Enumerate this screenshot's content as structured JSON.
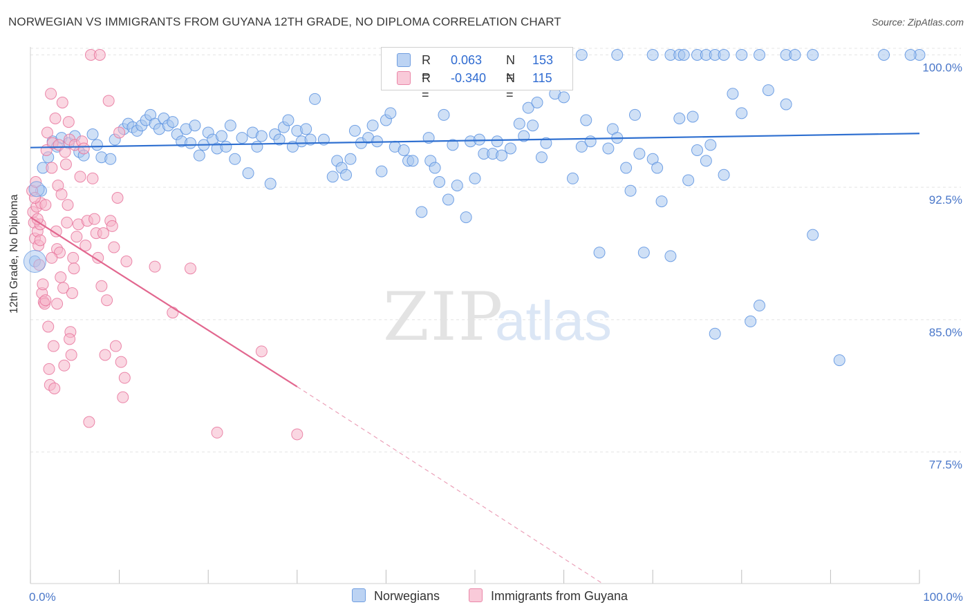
{
  "header": {
    "title": "NORWEGIAN VS IMMIGRANTS FROM GUYANA 12TH GRADE, NO DIPLOMA CORRELATION CHART",
    "source": "Source: ZipAtlas.com"
  },
  "legend": {
    "rows": [
      {
        "r_label": "R =",
        "r_value": "0.063",
        "n_label": "N =",
        "n_value": "153",
        "color": "#a8c6ef"
      },
      {
        "r_label": "R =",
        "r_value": "-0.340",
        "n_label": "N =",
        "n_value": "115",
        "color": "#f6b6ca"
      }
    ]
  },
  "bottom_legend": {
    "norwegians": "Norwegians",
    "guyana": "Immigrants from Guyana"
  },
  "watermark": {
    "zip": "ZIP",
    "atlas": "atlas"
  },
  "chart_data": {
    "type": "scatter",
    "ylabel": "12th Grade, No Diploma",
    "xlabel": "",
    "xlim": [
      0,
      100
    ],
    "ylim": [
      70,
      100.5
    ],
    "x_tick_labels": [
      "0.0%",
      "100.0%"
    ],
    "y_ticks": [
      {
        "value": 100.0,
        "label": "100.0%"
      },
      {
        "value": 92.5,
        "label": "92.5%"
      },
      {
        "value": 85.0,
        "label": "85.0%"
      },
      {
        "value": 77.5,
        "label": "77.5%"
      }
    ],
    "grid": true,
    "series": [
      {
        "name": "Norwegians",
        "color": "#5b92e0",
        "fill": "#a8c6ef",
        "trend": {
          "x": [
            0,
            100
          ],
          "y": [
            94.75,
            95.55
          ],
          "style": "solid"
        },
        "points": [
          [
            0.5,
            88.3
          ],
          [
            1.2,
            92.3
          ],
          [
            1.4,
            93.6
          ],
          [
            2,
            94.2
          ],
          [
            2.5,
            95.1
          ],
          [
            3,
            94.8
          ],
          [
            3.5,
            95.3
          ],
          [
            4.3,
            95.0
          ],
          [
            5,
            95.4
          ],
          [
            5.5,
            94.5
          ],
          [
            6,
            94.3
          ],
          [
            7,
            95.5
          ],
          [
            7.5,
            94.9
          ],
          [
            8,
            94.2
          ],
          [
            9,
            94.1
          ],
          [
            9.5,
            95.2
          ],
          [
            10.5,
            95.8
          ],
          [
            11,
            96.1
          ],
          [
            11.5,
            95.9
          ],
          [
            12,
            95.7
          ],
          [
            12.5,
            96.0
          ],
          [
            13,
            96.3
          ],
          [
            13.5,
            96.6
          ],
          [
            14,
            96.1
          ],
          [
            14.5,
            95.8
          ],
          [
            15,
            96.4
          ],
          [
            15.5,
            96.0
          ],
          [
            16,
            96.2
          ],
          [
            16.5,
            95.5
          ],
          [
            17,
            95.1
          ],
          [
            17.5,
            95.8
          ],
          [
            18,
            95.0
          ],
          [
            18.5,
            96.0
          ],
          [
            19,
            94.3
          ],
          [
            19.5,
            94.9
          ],
          [
            20,
            95.6
          ],
          [
            20.5,
            95.2
          ],
          [
            21,
            94.7
          ],
          [
            21.5,
            95.4
          ],
          [
            22,
            94.8
          ],
          [
            22.5,
            96.0
          ],
          [
            23,
            94.1
          ],
          [
            23.8,
            95.3
          ],
          [
            24.5,
            93.3
          ],
          [
            25,
            95.6
          ],
          [
            25.5,
            94.8
          ],
          [
            26,
            95.4
          ],
          [
            27,
            92.7
          ],
          [
            27.5,
            95.5
          ],
          [
            28,
            95.2
          ],
          [
            28.5,
            95.9
          ],
          [
            29,
            96.3
          ],
          [
            29.5,
            94.8
          ],
          [
            30,
            95.7
          ],
          [
            30.5,
            95.1
          ],
          [
            31,
            95.8
          ],
          [
            31.5,
            95.2
          ],
          [
            32,
            97.5
          ],
          [
            33,
            95.2
          ],
          [
            34,
            93.1
          ],
          [
            34.5,
            94.0
          ],
          [
            35,
            93.6
          ],
          [
            35.5,
            93.2
          ],
          [
            36,
            94.1
          ],
          [
            36.5,
            95.7
          ],
          [
            37.2,
            95.0
          ],
          [
            38,
            95.3
          ],
          [
            38.5,
            96.0
          ],
          [
            39,
            95.1
          ],
          [
            39.5,
            93.4
          ],
          [
            40,
            96.3
          ],
          [
            40.5,
            96.7
          ],
          [
            41,
            94.8
          ],
          [
            42,
            94.6
          ],
          [
            42.5,
            94.0
          ],
          [
            43,
            94.0
          ],
          [
            44,
            91.1
          ],
          [
            44.8,
            95.3
          ],
          [
            45,
            94.0
          ],
          [
            45.5,
            93.6
          ],
          [
            46,
            92.8
          ],
          [
            46.5,
            96.6
          ],
          [
            47,
            91.8
          ],
          [
            47.5,
            94.9
          ],
          [
            48,
            92.6
          ],
          [
            49,
            90.8
          ],
          [
            49.5,
            95.1
          ],
          [
            50,
            93.0
          ],
          [
            50.5,
            95.2
          ],
          [
            51,
            94.4
          ],
          [
            52,
            94.4
          ],
          [
            52.5,
            95.1
          ],
          [
            53,
            94.3
          ],
          [
            54,
            94.7
          ],
          [
            55,
            96.1
          ],
          [
            55.5,
            95.4
          ],
          [
            56,
            97.0
          ],
          [
            56.5,
            96.0
          ],
          [
            57,
            97.3
          ],
          [
            57.5,
            94.2
          ],
          [
            58,
            95.0
          ],
          [
            59,
            97.8
          ],
          [
            60,
            97.6
          ],
          [
            61,
            93.0
          ],
          [
            62,
            94.8
          ],
          [
            62.5,
            96.3
          ],
          [
            63,
            95.1
          ],
          [
            64,
            88.8
          ],
          [
            65,
            94.7
          ],
          [
            65.5,
            95.8
          ],
          [
            66,
            95.3
          ],
          [
            67,
            93.6
          ],
          [
            67.5,
            92.3
          ],
          [
            68,
            96.6
          ],
          [
            68.5,
            94.4
          ],
          [
            69,
            88.8
          ],
          [
            70,
            94.1
          ],
          [
            70.5,
            93.6
          ],
          [
            71,
            91.7
          ],
          [
            72,
            88.6
          ],
          [
            73,
            96.4
          ],
          [
            74,
            92.9
          ],
          [
            74.5,
            96.5
          ],
          [
            75,
            94.6
          ],
          [
            76,
            94.0
          ],
          [
            76.5,
            94.9
          ],
          [
            77,
            84.2
          ],
          [
            78,
            93.2
          ],
          [
            79,
            97.8
          ],
          [
            80,
            96.7
          ],
          [
            81,
            84.9
          ],
          [
            82,
            85.8
          ],
          [
            83,
            98.0
          ],
          [
            85,
            97.2
          ],
          [
            88,
            89.8
          ],
          [
            91,
            82.7
          ],
          [
            62,
            100
          ],
          [
            66,
            100
          ],
          [
            70,
            100
          ],
          [
            72,
            100
          ],
          [
            73,
            100
          ],
          [
            73.5,
            100
          ],
          [
            75,
            100
          ],
          [
            76,
            100
          ],
          [
            77,
            100
          ],
          [
            78,
            100
          ],
          [
            80,
            100
          ],
          [
            82,
            100
          ],
          [
            85,
            100
          ],
          [
            86,
            100
          ],
          [
            88,
            100
          ],
          [
            96,
            100
          ],
          [
            100,
            100
          ],
          [
            99,
            100
          ]
        ]
      },
      {
        "name": "Immigrants from Guyana",
        "color": "#e8739b",
        "fill": "#f6b6ca",
        "trend": {
          "x": [
            0,
            30
          ],
          "y": [
            90.8,
            81.2
          ],
          "style": "solid",
          "extended_x": [
            30,
            64.5
          ],
          "extended_y": [
            81.2,
            70
          ],
          "extended_style": "dashed"
        },
        "points": [
          [
            0.2,
            92.3
          ],
          [
            0.3,
            91.1
          ],
          [
            0.4,
            90.5
          ],
          [
            0.5,
            89.6
          ],
          [
            0.6,
            92.8
          ],
          [
            0.7,
            91.4
          ],
          [
            0.8,
            90.0
          ],
          [
            0.9,
            89.2
          ],
          [
            1.0,
            88.1
          ],
          [
            1.1,
            90.4
          ],
          [
            1.2,
            91.6
          ],
          [
            1.3,
            86.5
          ],
          [
            1.4,
            87.0
          ],
          [
            1.5,
            86.0
          ],
          [
            1.6,
            85.9
          ],
          [
            1.7,
            91.5
          ],
          [
            1.8,
            94.6
          ],
          [
            1.9,
            95.6
          ],
          [
            2.0,
            84.6
          ],
          [
            2.1,
            82.2
          ],
          [
            2.2,
            81.3
          ],
          [
            2.3,
            97.8
          ],
          [
            2.4,
            93.6
          ],
          [
            2.5,
            95.0
          ],
          [
            2.6,
            83.5
          ],
          [
            2.7,
            81.1
          ],
          [
            2.8,
            96.4
          ],
          [
            2.9,
            90.0
          ],
          [
            3.0,
            89.0
          ],
          [
            3.1,
            92.6
          ],
          [
            3.2,
            94.9
          ],
          [
            3.3,
            88.8
          ],
          [
            3.4,
            87.4
          ],
          [
            3.5,
            92.1
          ],
          [
            3.6,
            97.3
          ],
          [
            3.7,
            86.8
          ],
          [
            3.8,
            82.4
          ],
          [
            3.9,
            94.5
          ],
          [
            4.0,
            93.8
          ],
          [
            4.1,
            90.5
          ],
          [
            4.2,
            91.5
          ],
          [
            4.3,
            96.2
          ],
          [
            4.4,
            95.2
          ],
          [
            4.5,
            84.3
          ],
          [
            4.6,
            83.0
          ],
          [
            4.7,
            86.5
          ],
          [
            4.8,
            88.5
          ],
          [
            4.9,
            87.9
          ],
          [
            5.0,
            94.9
          ],
          [
            5.2,
            89.7
          ],
          [
            5.4,
            90.4
          ],
          [
            5.6,
            93.1
          ],
          [
            5.8,
            95.1
          ],
          [
            6.0,
            94.7
          ],
          [
            6.2,
            89.2
          ],
          [
            6.4,
            90.6
          ],
          [
            6.6,
            79.2
          ],
          [
            6.8,
            100
          ],
          [
            7.0,
            93.0
          ],
          [
            7.2,
            90.7
          ],
          [
            7.4,
            89.9
          ],
          [
            7.6,
            88.5
          ],
          [
            7.8,
            100
          ],
          [
            8.0,
            86.9
          ],
          [
            8.2,
            89.9
          ],
          [
            8.4,
            83.0
          ],
          [
            8.6,
            86.1
          ],
          [
            8.8,
            97.4
          ],
          [
            9.0,
            90.6
          ],
          [
            9.2,
            90.3
          ],
          [
            9.4,
            89.1
          ],
          [
            9.6,
            83.5
          ],
          [
            9.8,
            91.9
          ],
          [
            10.0,
            95.6
          ],
          [
            10.2,
            82.6
          ],
          [
            10.4,
            80.6
          ],
          [
            10.6,
            81.7
          ],
          [
            10.8,
            88.3
          ],
          [
            14.0,
            88.0
          ],
          [
            16.0,
            85.4
          ],
          [
            18.0,
            87.9
          ],
          [
            21.0,
            78.6
          ],
          [
            26.0,
            83.2
          ],
          [
            30.0,
            78.5
          ],
          [
            4.4,
            83.9
          ],
          [
            3.0,
            85.9
          ],
          [
            1.7,
            86.1
          ],
          [
            2.4,
            88.5
          ],
          [
            1.1,
            89.5
          ],
          [
            0.8,
            90.7
          ],
          [
            0.5,
            91.9
          ]
        ]
      }
    ]
  }
}
